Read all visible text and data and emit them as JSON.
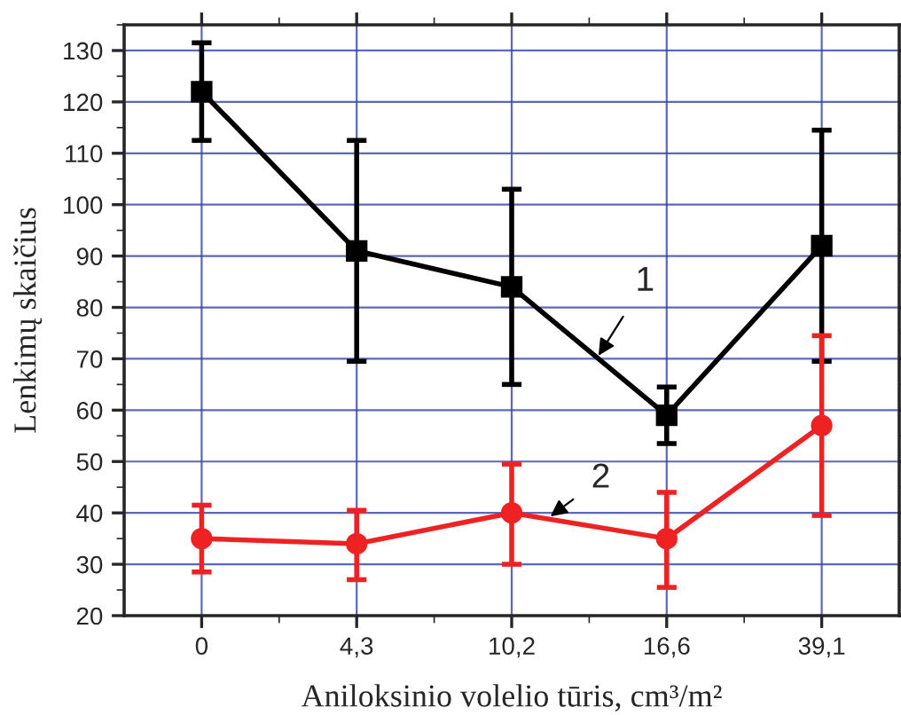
{
  "chart_data": {
    "type": "line",
    "xlabel": "Aniloksinio volelio tūris, cm³/m²",
    "ylabel": "Lenkimų skaičius",
    "categories": [
      "0",
      "4,3",
      "10,2",
      "16,6",
      "39,1"
    ],
    "ylim": [
      20,
      135
    ],
    "yticks": [
      20,
      30,
      40,
      50,
      60,
      70,
      80,
      90,
      100,
      110,
      120,
      130
    ],
    "grid": true,
    "series": [
      {
        "name": "1",
        "color": "#000000",
        "marker": "square",
        "values": [
          122,
          91,
          84,
          59,
          92
        ],
        "errors": [
          [
            112.5,
            131.5
          ],
          [
            69.5,
            112.5
          ],
          [
            65,
            103
          ],
          [
            53.5,
            64.5
          ],
          [
            69.5,
            114.5
          ]
        ]
      },
      {
        "name": "2",
        "color": "#ee2222",
        "marker": "circle",
        "values": [
          35,
          34,
          40,
          35,
          57
        ],
        "errors": [
          [
            28.5,
            41.5
          ],
          [
            27,
            40.5
          ],
          [
            30,
            49.5
          ],
          [
            25.5,
            44
          ],
          [
            39.5,
            74.5
          ]
        ]
      }
    ]
  }
}
